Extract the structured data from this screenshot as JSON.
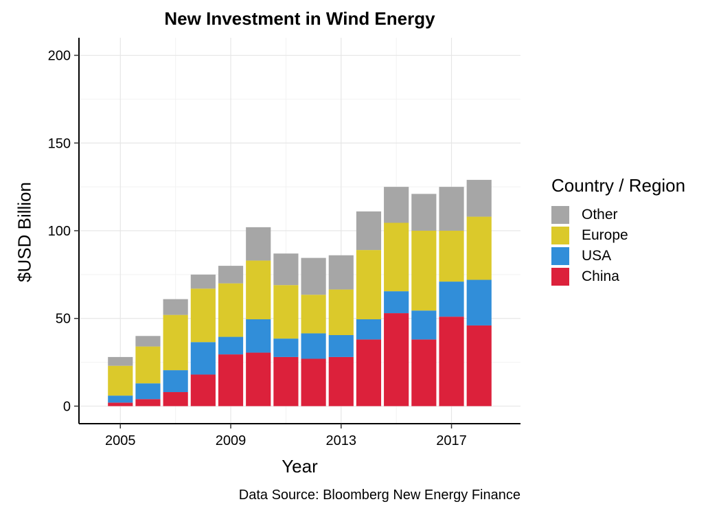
{
  "chart_data": {
    "type": "bar",
    "stacked": true,
    "title": "New Investment in Wind Energy",
    "xlabel": "Year",
    "ylabel": "$USD Billion",
    "caption": "Data Source: Bloomberg New Energy Finance",
    "x": [
      2005,
      2006,
      2007,
      2008,
      2009,
      2010,
      2011,
      2012,
      2013,
      2014,
      2015,
      2016,
      2017,
      2018
    ],
    "x_ticks": [
      "2005",
      "2009",
      "2013",
      "2017"
    ],
    "y_ticks": [
      "0",
      "50",
      "100",
      "150",
      "200"
    ],
    "xlim": [
      2003.5,
      2019.5
    ],
    "ylim": [
      -10,
      210
    ],
    "grid": true,
    "legend": {
      "title": "Country / Region",
      "placement": "right",
      "order": [
        "Other",
        "Europe",
        "USA",
        "China"
      ]
    },
    "series": [
      {
        "name": "China",
        "color": "#DC213B",
        "values": [
          2,
          4,
          8,
          18,
          29.5,
          30.5,
          28,
          27,
          28,
          38,
          53,
          38,
          51,
          46
        ]
      },
      {
        "name": "USA",
        "color": "#318ED9",
        "values": [
          4,
          9,
          12.5,
          18.5,
          10,
          19,
          10.5,
          14.5,
          12.5,
          11.5,
          12.5,
          16.5,
          20,
          26
        ]
      },
      {
        "name": "Europe",
        "color": "#DBC92B",
        "values": [
          17,
          21,
          31.5,
          30.5,
          30.5,
          33.5,
          30.5,
          22,
          26,
          39.5,
          39,
          45.5,
          29,
          36
        ]
      },
      {
        "name": "Other",
        "color": "#A6A6A6",
        "values": [
          5,
          6,
          9,
          8,
          10,
          19,
          18,
          21,
          19.5,
          22,
          20.5,
          21,
          25,
          21
        ]
      }
    ]
  }
}
